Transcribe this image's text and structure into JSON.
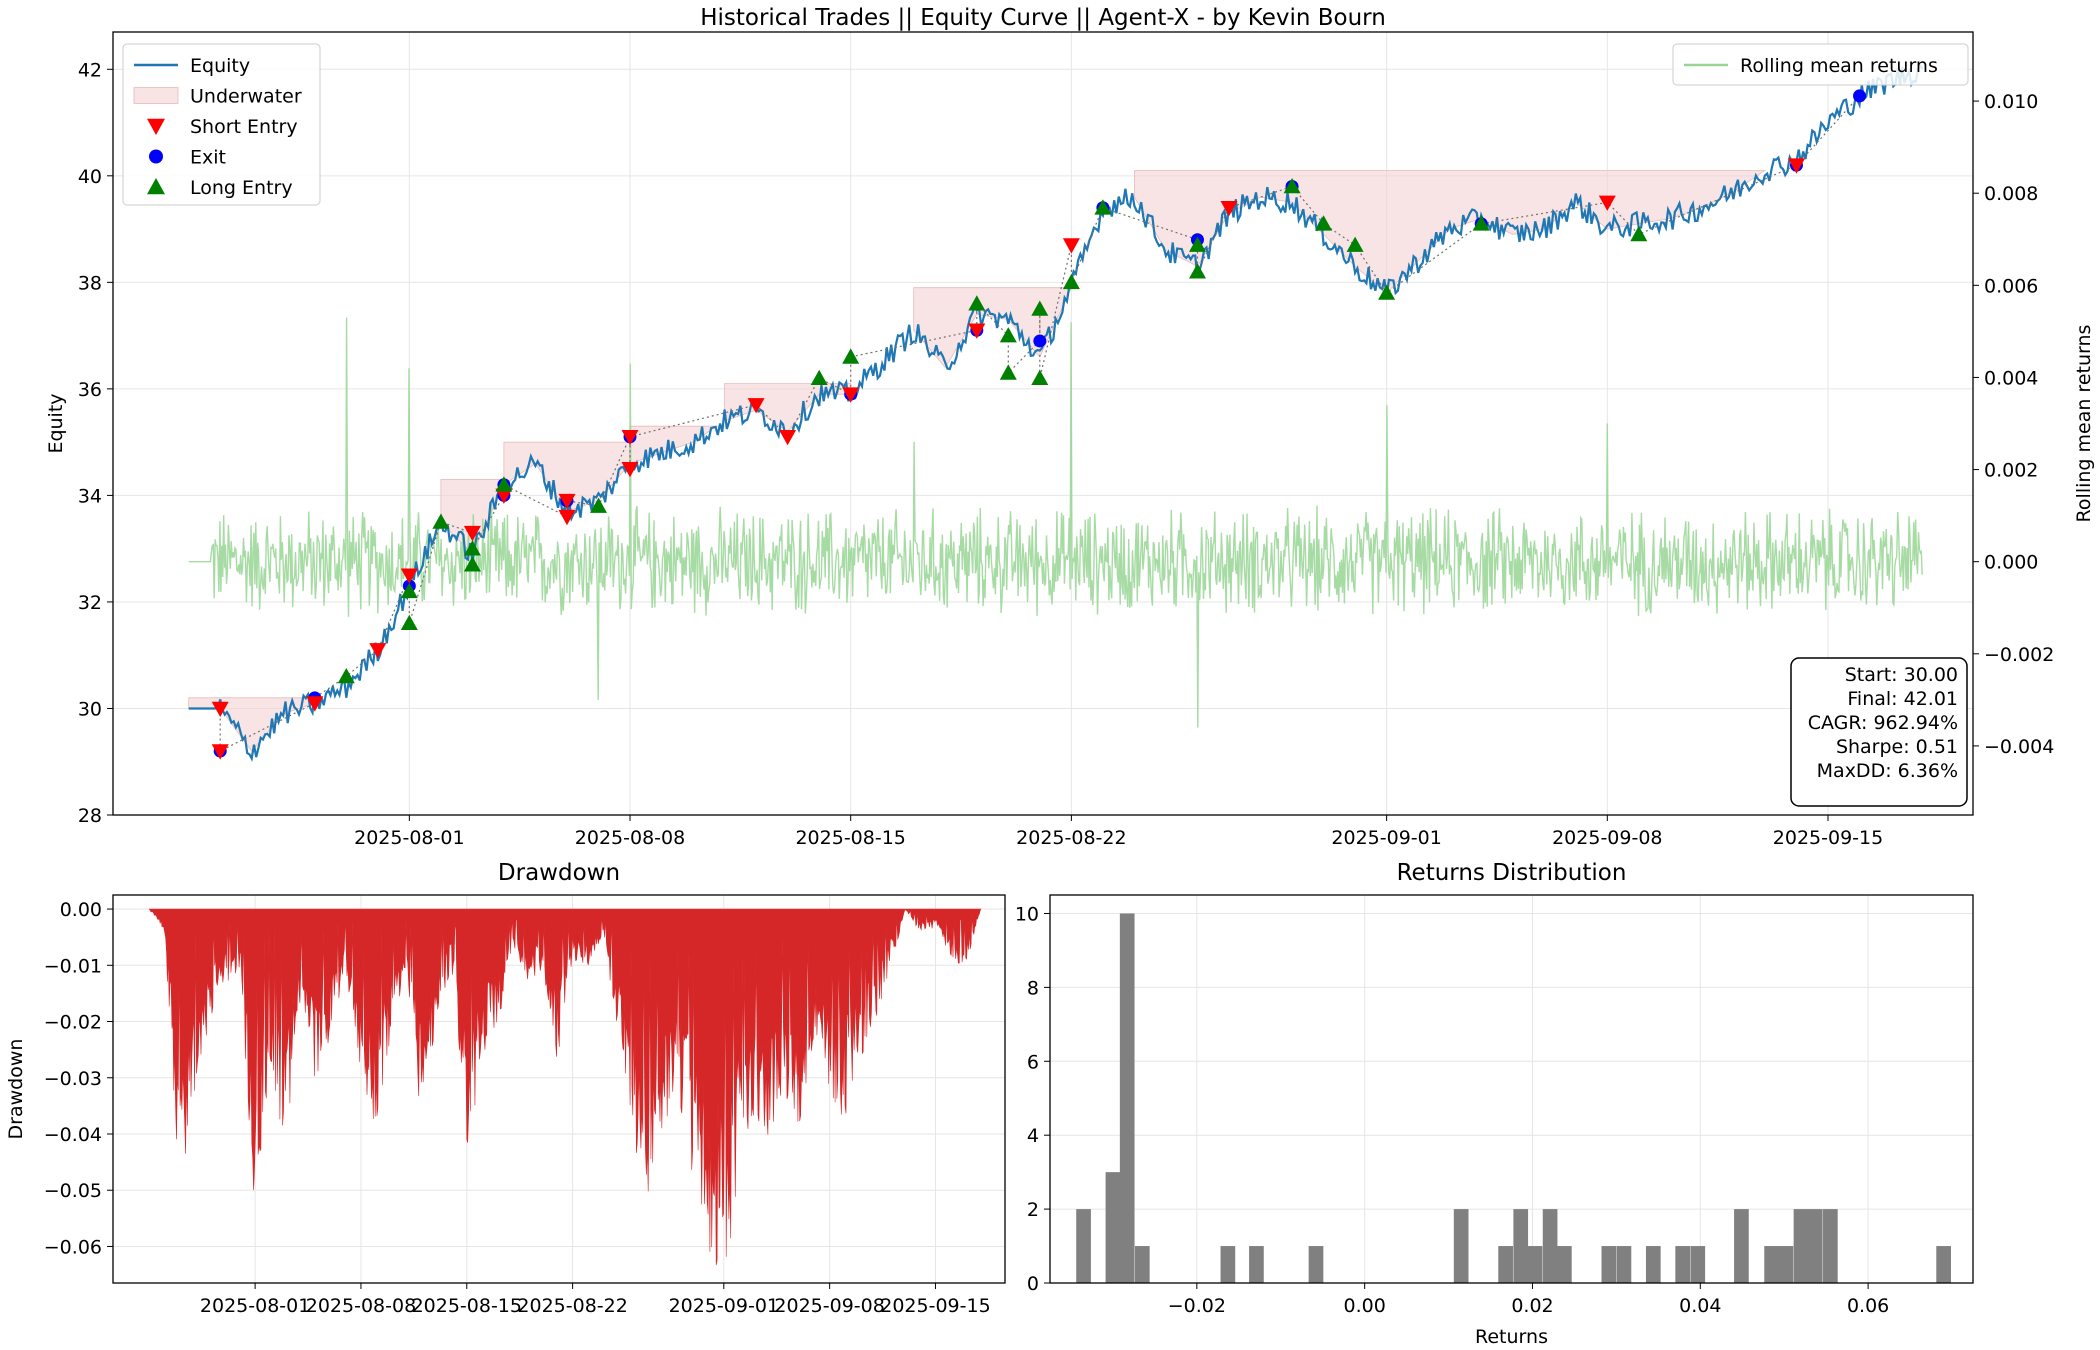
{
  "colors": {
    "equity": "#1f77b4",
    "underwater_fill": "#f3d2d2",
    "short_entry": "#ff0000",
    "exit": "#0000ff",
    "long_entry": "#008000",
    "rolling": "#98d594",
    "drawdown": "#d62728",
    "histogram": "#808080",
    "grid": "#e6e6e6",
    "trade_path": "#707070"
  },
  "chart_data": [
    {
      "type": "line",
      "title": "Historical Trades || Equity Curve || Agent-X - by Kevin Bourn",
      "xlabel": "",
      "ylabel": "Equity",
      "y2label": "Rolling mean returns",
      "x_range": [
        "2025-07-25",
        "2025-09-18"
      ],
      "ylim": [
        28,
        42.7
      ],
      "y2lim": [
        -0.0055,
        0.0115
      ],
      "x_ticks": [
        "2025-08-01",
        "2025-08-08",
        "2025-08-15",
        "2025-08-22",
        "2025-09-01",
        "2025-09-08",
        "2025-09-15"
      ],
      "y_ticks": [
        28,
        30,
        32,
        34,
        36,
        38,
        40,
        42
      ],
      "y_tick_labels": [
        "28",
        "30",
        "32",
        "34",
        "36",
        "38",
        "40",
        "42"
      ],
      "y2_ticks": [
        -0.004,
        -0.002,
        0.0,
        0.002,
        0.004,
        0.006,
        0.008,
        0.01
      ],
      "y2_tick_labels": [
        "−0.004",
        "−0.002",
        "0.000",
        "0.002",
        "0.004",
        "0.006",
        "0.008",
        "0.010"
      ],
      "grid": true,
      "legend_position": "top-left",
      "legend": [
        "Equity",
        "Underwater",
        "Short Entry",
        "Exit",
        "Long Entry"
      ],
      "legend2_position": "top-right",
      "legend2": [
        "Rolling mean returns"
      ],
      "series": [
        {
          "name": "Equity",
          "x": [
            "2025-07-25",
            "2025-07-26",
            "2025-07-27",
            "2025-07-28",
            "2025-07-29",
            "2025-07-30",
            "2025-07-31",
            "2025-08-01",
            "2025-08-02",
            "2025-08-03",
            "2025-08-04",
            "2025-08-05",
            "2025-08-06",
            "2025-08-07",
            "2025-08-08",
            "2025-08-09",
            "2025-08-10",
            "2025-08-11",
            "2025-08-12",
            "2025-08-13",
            "2025-08-14",
            "2025-08-15",
            "2025-08-16",
            "2025-08-17",
            "2025-08-18",
            "2025-08-19",
            "2025-08-20",
            "2025-08-21",
            "2025-08-22",
            "2025-08-23",
            "2025-08-24",
            "2025-08-25",
            "2025-08-26",
            "2025-08-27",
            "2025-08-28",
            "2025-08-29",
            "2025-08-30",
            "2025-08-31",
            "2025-09-01",
            "2025-09-02",
            "2025-09-03",
            "2025-09-04",
            "2025-09-05",
            "2025-09-06",
            "2025-09-07",
            "2025-09-08",
            "2025-09-09",
            "2025-09-10",
            "2025-09-11",
            "2025-09-12",
            "2025-09-13",
            "2025-09-14",
            "2025-09-15",
            "2025-09-16",
            "2025-09-17",
            "2025-09-18"
          ],
          "values": [
            30.0,
            30.0,
            29.2,
            29.9,
            30.1,
            30.4,
            31.1,
            32.3,
            33.5,
            32.9,
            34.2,
            34.6,
            33.7,
            33.9,
            34.6,
            34.8,
            35.0,
            35.4,
            35.6,
            35.2,
            35.9,
            35.9,
            36.5,
            37.1,
            36.4,
            37.4,
            37.3,
            36.6,
            37.9,
            39.4,
            39.6,
            38.6,
            38.3,
            39.3,
            39.6,
            39.5,
            38.9,
            38.3,
            37.8,
            38.4,
            39.0,
            39.2,
            38.9,
            39.0,
            39.5,
            39.0,
            39.1,
            39.2,
            39.4,
            39.7,
            40.1,
            40.3,
            41.0,
            41.5,
            41.8,
            42.0
          ]
        }
      ],
      "underwater": [
        {
          "x_from": "2025-07-25",
          "x_to": "2025-07-29",
          "peak": 30.2
        },
        {
          "x_from": "2025-08-02",
          "x_to": "2025-08-04",
          "peak": 34.3
        },
        {
          "x_from": "2025-08-04",
          "x_to": "2025-08-08",
          "peak": 35.0
        },
        {
          "x_from": "2025-08-08",
          "x_to": "2025-08-11",
          "peak": 35.3
        },
        {
          "x_from": "2025-08-11",
          "x_to": "2025-08-15",
          "peak": 36.1
        },
        {
          "x_from": "2025-08-17",
          "x_to": "2025-08-22",
          "peak": 37.9
        },
        {
          "x_from": "2025-08-24",
          "x_to": "2025-09-13",
          "peak": 40.1
        }
      ],
      "short_entries": [
        {
          "x": "2025-07-26",
          "y": 30.0
        },
        {
          "x": "2025-07-26",
          "y": 29.2
        },
        {
          "x": "2025-07-29",
          "y": 30.1
        },
        {
          "x": "2025-07-31",
          "y": 31.1
        },
        {
          "x": "2025-08-01",
          "y": 32.5
        },
        {
          "x": "2025-08-03",
          "y": 33.3
        },
        {
          "x": "2025-08-04",
          "y": 34.0
        },
        {
          "x": "2025-08-06",
          "y": 33.6
        },
        {
          "x": "2025-08-06",
          "y": 33.9
        },
        {
          "x": "2025-08-08",
          "y": 35.1
        },
        {
          "x": "2025-08-08",
          "y": 34.5
        },
        {
          "x": "2025-08-12",
          "y": 35.7
        },
        {
          "x": "2025-08-13",
          "y": 35.1
        },
        {
          "x": "2025-08-15",
          "y": 35.9
        },
        {
          "x": "2025-08-19",
          "y": 37.1
        },
        {
          "x": "2025-08-22",
          "y": 38.7
        },
        {
          "x": "2025-08-27",
          "y": 39.4
        },
        {
          "x": "2025-09-08",
          "y": 39.5
        },
        {
          "x": "2025-09-14",
          "y": 40.2
        }
      ],
      "exits": [
        {
          "x": "2025-07-26",
          "y": 29.2
        },
        {
          "x": "2025-07-29",
          "y": 30.2
        },
        {
          "x": "2025-08-01",
          "y": 32.3
        },
        {
          "x": "2025-08-04",
          "y": 34.0
        },
        {
          "x": "2025-08-04",
          "y": 34.2
        },
        {
          "x": "2025-08-06",
          "y": 33.9
        },
        {
          "x": "2025-08-08",
          "y": 35.1
        },
        {
          "x": "2025-08-15",
          "y": 35.9
        },
        {
          "x": "2025-08-19",
          "y": 37.1
        },
        {
          "x": "2025-08-21",
          "y": 36.9
        },
        {
          "x": "2025-08-23",
          "y": 39.4
        },
        {
          "x": "2025-08-26",
          "y": 38.8
        },
        {
          "x": "2025-08-29",
          "y": 39.8
        },
        {
          "x": "2025-09-04",
          "y": 39.1
        },
        {
          "x": "2025-09-14",
          "y": 40.2
        },
        {
          "x": "2025-09-16",
          "y": 41.5
        }
      ],
      "long_entries": [
        {
          "x": "2025-07-30",
          "y": 30.6
        },
        {
          "x": "2025-08-01",
          "y": 32.2
        },
        {
          "x": "2025-08-01",
          "y": 31.6
        },
        {
          "x": "2025-08-02",
          "y": 33.5
        },
        {
          "x": "2025-08-03",
          "y": 32.7
        },
        {
          "x": "2025-08-03",
          "y": 33.0
        },
        {
          "x": "2025-08-04",
          "y": 34.2
        },
        {
          "x": "2025-08-07",
          "y": 33.8
        },
        {
          "x": "2025-08-14",
          "y": 36.2
        },
        {
          "x": "2025-08-15",
          "y": 36.6
        },
        {
          "x": "2025-08-19",
          "y": 37.6
        },
        {
          "x": "2025-08-20",
          "y": 37.0
        },
        {
          "x": "2025-08-20",
          "y": 36.3
        },
        {
          "x": "2025-08-21",
          "y": 37.5
        },
        {
          "x": "2025-08-21",
          "y": 36.2
        },
        {
          "x": "2025-08-22",
          "y": 38.0
        },
        {
          "x": "2025-08-23",
          "y": 39.4
        },
        {
          "x": "2025-08-26",
          "y": 38.7
        },
        {
          "x": "2025-08-26",
          "y": 38.2
        },
        {
          "x": "2025-08-29",
          "y": 39.8
        },
        {
          "x": "2025-08-30",
          "y": 39.1
        },
        {
          "x": "2025-08-31",
          "y": 38.7
        },
        {
          "x": "2025-09-01",
          "y": 37.8
        },
        {
          "x": "2025-09-04",
          "y": 39.1
        },
        {
          "x": "2025-09-09",
          "y": 38.9
        }
      ],
      "rolling_mean_returns": {
        "x_range": [
          "2025-07-25",
          "2025-09-18"
        ],
        "flat_start_value": 0.0,
        "typical_amplitude": 0.0012,
        "spikes": [
          {
            "x": "2025-07-30",
            "value": 0.0053
          },
          {
            "x": "2025-08-01",
            "value": 0.0042
          },
          {
            "x": "2025-08-07",
            "value": -0.003
          },
          {
            "x": "2025-08-08",
            "value": 0.0043
          },
          {
            "x": "2025-08-17",
            "value": 0.0026
          },
          {
            "x": "2025-08-22",
            "value": 0.0052
          },
          {
            "x": "2025-08-26",
            "value": -0.0036
          },
          {
            "x": "2025-09-01",
            "value": 0.0034
          },
          {
            "x": "2025-09-08",
            "value": 0.003
          }
        ]
      },
      "annotation": [
        "Start: 30.00",
        "Final: 42.01",
        "CAGR: 962.94%",
        "Sharpe: 0.51",
        "MaxDD: 6.36%"
      ]
    },
    {
      "type": "area",
      "title": "Drawdown",
      "xlabel": "",
      "ylabel": "Drawdown",
      "ylim": [
        -0.0665,
        0.0025
      ],
      "x_ticks": [
        "2025-08-01",
        "2025-08-08",
        "2025-08-15",
        "2025-08-22",
        "2025-09-01",
        "2025-09-08",
        "2025-09-15"
      ],
      "y_ticks": [
        0.0,
        -0.01,
        -0.02,
        -0.03,
        -0.04,
        -0.05,
        -0.06
      ],
      "y_tick_labels": [
        "0.00",
        "−0.01",
        "−0.02",
        "−0.03",
        "−0.04",
        "−0.05",
        "−0.06"
      ],
      "grid": true,
      "x": [
        "2025-07-25",
        "2025-07-26",
        "2025-07-27",
        "2025-07-28",
        "2025-07-29",
        "2025-07-30",
        "2025-07-31",
        "2025-08-01",
        "2025-08-02",
        "2025-08-03",
        "2025-08-04",
        "2025-08-05",
        "2025-08-06",
        "2025-08-07",
        "2025-08-08",
        "2025-08-09",
        "2025-08-10",
        "2025-08-11",
        "2025-08-12",
        "2025-08-13",
        "2025-08-14",
        "2025-08-15",
        "2025-08-16",
        "2025-08-17",
        "2025-08-18",
        "2025-08-19",
        "2025-08-20",
        "2025-08-21",
        "2025-08-22",
        "2025-08-23",
        "2025-08-24",
        "2025-08-25",
        "2025-08-26",
        "2025-08-27",
        "2025-08-28",
        "2025-08-29",
        "2025-08-30",
        "2025-08-31",
        "2025-09-01",
        "2025-09-02",
        "2025-09-03",
        "2025-09-04",
        "2025-09-05",
        "2025-09-06",
        "2025-09-07",
        "2025-09-08",
        "2025-09-09",
        "2025-09-10",
        "2025-09-11",
        "2025-09-12",
        "2025-09-13",
        "2025-09-14",
        "2025-09-15",
        "2025-09-16",
        "2025-09-17",
        "2025-09-18"
      ],
      "values": [
        0.0,
        -0.004,
        -0.048,
        -0.03,
        -0.018,
        -0.012,
        -0.01,
        -0.052,
        -0.025,
        -0.04,
        -0.015,
        -0.03,
        -0.02,
        -0.01,
        -0.028,
        -0.036,
        -0.02,
        -0.01,
        -0.035,
        -0.018,
        -0.01,
        -0.04,
        -0.025,
        -0.02,
        -0.008,
        -0.012,
        -0.01,
        -0.025,
        -0.008,
        -0.01,
        -0.004,
        -0.02,
        -0.035,
        -0.059,
        -0.04,
        -0.03,
        -0.045,
        -0.055,
        -0.063,
        -0.045,
        -0.035,
        -0.038,
        -0.03,
        -0.036,
        -0.02,
        -0.03,
        -0.035,
        -0.025,
        -0.02,
        -0.01,
        0.0,
        -0.004,
        -0.003,
        -0.008,
        -0.01,
        0.0
      ]
    },
    {
      "type": "bar",
      "title": "Returns Distribution",
      "xlabel": "Returns",
      "ylabel": "",
      "xlim": [
        -0.0375,
        0.0725
      ],
      "ylim": [
        0,
        10.5
      ],
      "x_ticks": [
        -0.02,
        0.0,
        0.02,
        0.04,
        0.06
      ],
      "x_tick_labels": [
        "−0.02",
        "0.00",
        "0.02",
        "0.04",
        "0.06"
      ],
      "y_ticks": [
        0,
        2,
        4,
        6,
        8,
        10
      ],
      "y_tick_labels": [
        "0",
        "2",
        "4",
        "6",
        "8",
        "10"
      ],
      "grid": true,
      "bin_width": 0.00175,
      "bins": [
        {
          "x": -0.0335,
          "count": 2
        },
        {
          "x": -0.03,
          "count": 3
        },
        {
          "x": -0.0283,
          "count": 10
        },
        {
          "x": -0.0265,
          "count": 1
        },
        {
          "x": -0.0163,
          "count": 1
        },
        {
          "x": -0.0129,
          "count": 1
        },
        {
          "x": -0.0058,
          "count": 1
        },
        {
          "x": 0.0115,
          "count": 2
        },
        {
          "x": 0.0168,
          "count": 1
        },
        {
          "x": 0.0186,
          "count": 2
        },
        {
          "x": 0.0203,
          "count": 1
        },
        {
          "x": 0.0221,
          "count": 2
        },
        {
          "x": 0.0238,
          "count": 1
        },
        {
          "x": 0.0291,
          "count": 1
        },
        {
          "x": 0.0309,
          "count": 1
        },
        {
          "x": 0.0344,
          "count": 1
        },
        {
          "x": 0.0379,
          "count": 1
        },
        {
          "x": 0.0397,
          "count": 1
        },
        {
          "x": 0.0449,
          "count": 2
        },
        {
          "x": 0.0485,
          "count": 1
        },
        {
          "x": 0.0502,
          "count": 1
        },
        {
          "x": 0.052,
          "count": 2
        },
        {
          "x": 0.0537,
          "count": 2
        },
        {
          "x": 0.0555,
          "count": 2
        },
        {
          "x": 0.069,
          "count": 1
        }
      ]
    }
  ]
}
